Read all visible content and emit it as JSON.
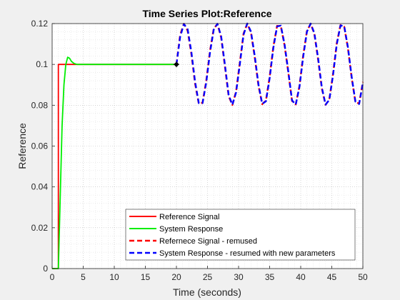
{
  "chart_data": {
    "type": "line",
    "title": "Time Series Plot:Reference",
    "xlabel": "Time (seconds)",
    "ylabel": "Reference",
    "xlim": [
      0,
      50
    ],
    "ylim": [
      0,
      0.12
    ],
    "x_ticks": [
      0,
      5,
      10,
      15,
      20,
      25,
      30,
      35,
      40,
      45,
      50
    ],
    "y_ticks": [
      0,
      0.02,
      0.04,
      0.06,
      0.08,
      0.1,
      0.12
    ],
    "x_tick_labels": [
      "0",
      "5",
      "10",
      "15",
      "20",
      "25",
      "30",
      "35",
      "40",
      "45",
      "50"
    ],
    "y_tick_labels": [
      "0",
      "0.02",
      "0.04",
      "0.06",
      "0.08",
      "0.1",
      "0.12"
    ],
    "grid": "major-and-minor-dotted",
    "legend_position": "bottom-right",
    "series": [
      {
        "name": "Reference Signal",
        "color": "#ff0000",
        "style": "solid",
        "x": [
          0,
          1,
          1,
          20
        ],
        "y": [
          0,
          0,
          0.1,
          0.1
        ]
      },
      {
        "name": "System Response",
        "color": "#00ee00",
        "style": "solid",
        "x": [
          0,
          1.0,
          1.3,
          1.6,
          1.9,
          2.2,
          2.5,
          2.8,
          3.1,
          3.5,
          4.0,
          5.0,
          7.0,
          20
        ],
        "y": [
          0,
          0,
          0.035,
          0.07,
          0.09,
          0.1,
          0.1035,
          0.103,
          0.1015,
          0.1005,
          0.1,
          0.1,
          0.1,
          0.1
        ]
      },
      {
        "name": "Refernece Signal - remused",
        "color": "#ff0000",
        "style": "dashed",
        "x": [
          20,
          20.6,
          21.2,
          21.8,
          22.4,
          23.0,
          23.6,
          24.2,
          24.8,
          25.4,
          26.0,
          26.6,
          27.2,
          27.8,
          28.4,
          29.0,
          29.6,
          30.2,
          30.8,
          31.4,
          32.0,
          32.6,
          33.2,
          33.8,
          34.4,
          35.0,
          35.6,
          36.2,
          36.8,
          37.4,
          38.0,
          38.6,
          39.2,
          39.8,
          40.4,
          41.0,
          41.6,
          42.2,
          42.8,
          43.4,
          44.0,
          44.6,
          45.2,
          45.8,
          46.4,
          47.0,
          47.6,
          48.2,
          48.8,
          49.4,
          50.0
        ],
        "y": [
          0.1,
          0.1145,
          0.1199,
          0.1165,
          0.1052,
          0.0906,
          0.0807,
          0.0812,
          0.092,
          0.1066,
          0.1175,
          0.1198,
          0.1131,
          0.0991,
          0.0845,
          0.0801,
          0.0868,
          0.1008,
          0.1151,
          0.12,
          0.1155,
          0.1035,
          0.0896,
          0.0805,
          0.0823,
          0.0939,
          0.1089,
          0.1189,
          0.1187,
          0.1093,
          0.0961,
          0.0821,
          0.0804,
          0.0895,
          0.1045,
          0.1164,
          0.1199,
          0.1149,
          0.1023,
          0.0882,
          0.0802,
          0.0829,
          0.0953,
          0.1104,
          0.1193,
          0.1185,
          0.1078,
          0.0934,
          0.0816,
          0.0808,
          0.0914
        ]
      },
      {
        "name": "System Response - resumed with new parameters",
        "color": "#0000ff",
        "style": "dashed",
        "x": [
          20,
          20.6,
          21.2,
          21.8,
          22.4,
          23.0,
          23.6,
          24.2,
          24.8,
          25.4,
          26.0,
          26.6,
          27.2,
          27.8,
          28.4,
          29.0,
          29.6,
          30.2,
          30.8,
          31.4,
          32.0,
          32.6,
          33.2,
          33.8,
          34.4,
          35.0,
          35.6,
          36.2,
          36.8,
          37.4,
          38.0,
          38.6,
          39.2,
          39.8,
          40.4,
          41.0,
          41.6,
          42.2,
          42.8,
          43.4,
          44.0,
          44.6,
          45.2,
          45.8,
          46.4,
          47.0,
          47.6,
          48.2,
          48.8,
          49.4,
          50.0
        ],
        "y": [
          0.1,
          0.1135,
          0.1198,
          0.1172,
          0.1062,
          0.0915,
          0.081,
          0.081,
          0.0912,
          0.1058,
          0.117,
          0.1199,
          0.1137,
          0.0999,
          0.0851,
          0.0802,
          0.0863,
          0.1,
          0.1146,
          0.12,
          0.116,
          0.1042,
          0.0902,
          0.0807,
          0.0819,
          0.0932,
          0.1082,
          0.1186,
          0.119,
          0.1099,
          0.0966,
          0.0824,
          0.0803,
          0.089,
          0.1038,
          0.116,
          0.12,
          0.1153,
          0.103,
          0.0887,
          0.0803,
          0.0826,
          0.0947,
          0.1098,
          0.1191,
          0.1187,
          0.1084,
          0.094,
          0.0818,
          0.0806,
          0.0908
        ]
      }
    ],
    "annotations": [
      {
        "type": "marker",
        "x": 20,
        "y": 0.1,
        "color": "#000000"
      }
    ]
  }
}
